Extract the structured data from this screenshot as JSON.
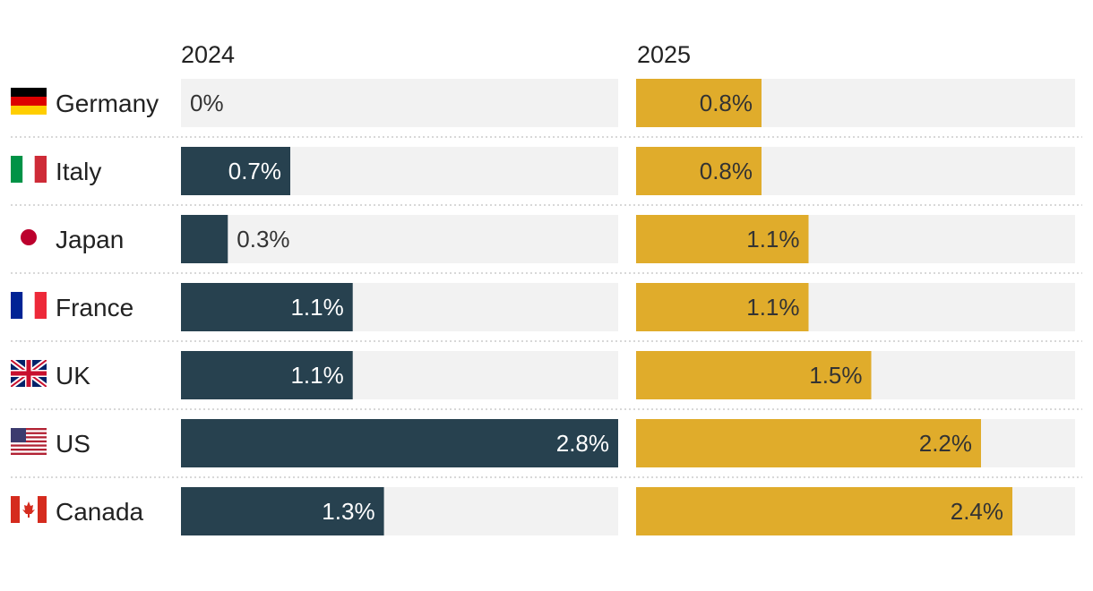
{
  "chart_data": {
    "type": "bar",
    "layout": "small-multiples-horizontal",
    "title": "",
    "categories": [
      "Germany",
      "Italy",
      "Japan",
      "France",
      "UK",
      "US",
      "Canada"
    ],
    "series": [
      {
        "name": "2024",
        "color": "#27414f",
        "values": [
          0.0,
          0.7,
          0.3,
          1.1,
          1.1,
          2.8,
          1.3
        ],
        "labels": [
          "0%",
          "0.7%",
          "0.3%",
          "1.1%",
          "1.1%",
          "2.8%",
          "1.3%"
        ]
      },
      {
        "name": "2025",
        "color": "#e0ac2b",
        "values": [
          0.8,
          0.8,
          1.1,
          1.1,
          1.5,
          2.2,
          2.4
        ],
        "labels": [
          "0.8%",
          "0.8%",
          "1.1%",
          "1.1%",
          "1.5%",
          "2.2%",
          "2.4%"
        ]
      }
    ],
    "xlim": [
      0,
      2.8
    ],
    "background_track_color": "#f2f2f2",
    "flags": [
      "germany-flag",
      "italy-flag",
      "japan-flag",
      "france-flag",
      "uk-flag",
      "us-flag",
      "canada-flag"
    ]
  }
}
